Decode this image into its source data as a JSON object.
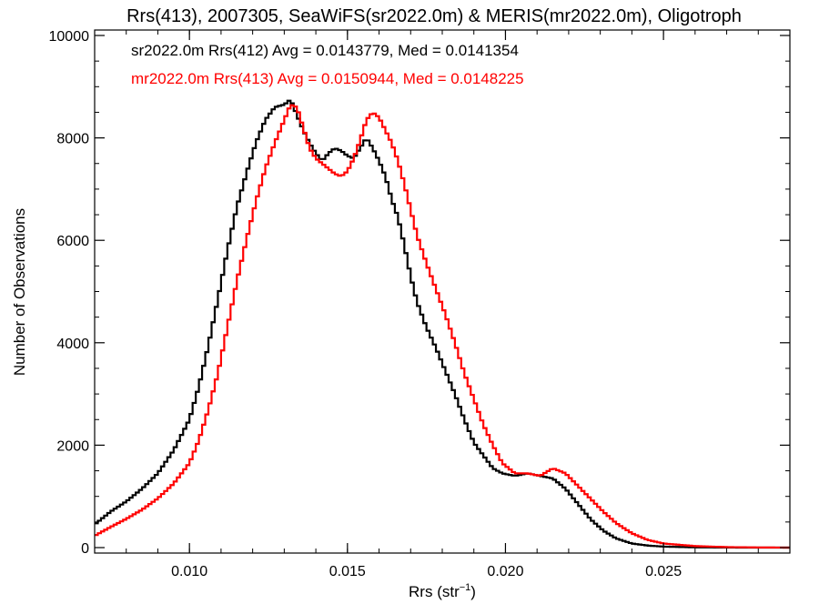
{
  "chart_data": {
    "type": "line",
    "title": "Rrs(413), 2007305, SeaWiFS(sr2022.0m) & MERIS(mr2022.0m), Oligotroph",
    "xlabel_main": "Rrs (str",
    "xlabel_sup": "−1",
    "xlabel_close": ")",
    "ylabel": "Number of Observations",
    "xlim": [
      0.007,
      0.029
    ],
    "ylim": [
      0,
      10000
    ],
    "x_ticks": [
      {
        "value": 0.01,
        "label": "0.010"
      },
      {
        "value": 0.015,
        "label": "0.015"
      },
      {
        "value": 0.02,
        "label": "0.020"
      },
      {
        "value": 0.025,
        "label": "0.025"
      }
    ],
    "y_ticks": [
      {
        "value": 0,
        "label": "0"
      },
      {
        "value": 2000,
        "label": "2000"
      },
      {
        "value": 4000,
        "label": "4000"
      },
      {
        "value": 6000,
        "label": "6000"
      },
      {
        "value": 8000,
        "label": "8000"
      },
      {
        "value": 10000,
        "label": "10000"
      }
    ],
    "grid": false,
    "series": [
      {
        "name": "sr2022.0m Rrs(412) Avg = 0.0143779, Med = 0.0141354",
        "color": "#000000",
        "step": true,
        "points": [
          [
            0.007,
            450
          ],
          [
            0.0075,
            700
          ],
          [
            0.008,
            900
          ],
          [
            0.0085,
            1150
          ],
          [
            0.009,
            1450
          ],
          [
            0.0095,
            1900
          ],
          [
            0.01,
            2500
          ],
          [
            0.0103,
            3150
          ],
          [
            0.0106,
            3950
          ],
          [
            0.0109,
            4850
          ],
          [
            0.0112,
            5800
          ],
          [
            0.0115,
            6650
          ],
          [
            0.0118,
            7300
          ],
          [
            0.0121,
            7900
          ],
          [
            0.0124,
            8350
          ],
          [
            0.0127,
            8600
          ],
          [
            0.013,
            8650
          ],
          [
            0.0132,
            8750
          ],
          [
            0.0134,
            8450
          ],
          [
            0.0136,
            8150
          ],
          [
            0.0138,
            7900
          ],
          [
            0.014,
            7700
          ],
          [
            0.0142,
            7550
          ],
          [
            0.0144,
            7700
          ],
          [
            0.0146,
            7800
          ],
          [
            0.0148,
            7750
          ],
          [
            0.015,
            7650
          ],
          [
            0.0152,
            7600
          ],
          [
            0.0154,
            7800
          ],
          [
            0.0156,
            8000
          ],
          [
            0.0158,
            7800
          ],
          [
            0.016,
            7550
          ],
          [
            0.0162,
            7250
          ],
          [
            0.0164,
            6800
          ],
          [
            0.0166,
            6450
          ],
          [
            0.0168,
            5900
          ],
          [
            0.017,
            5300
          ],
          [
            0.0172,
            4800
          ],
          [
            0.0175,
            4300
          ],
          [
            0.0178,
            3900
          ],
          [
            0.0181,
            3450
          ],
          [
            0.0184,
            3000
          ],
          [
            0.0187,
            2500
          ],
          [
            0.019,
            2050
          ],
          [
            0.0193,
            1800
          ],
          [
            0.0196,
            1550
          ],
          [
            0.0199,
            1450
          ],
          [
            0.0203,
            1400
          ],
          [
            0.0207,
            1450
          ],
          [
            0.0211,
            1400
          ],
          [
            0.0215,
            1350
          ],
          [
            0.0219,
            1150
          ],
          [
            0.0223,
            850
          ],
          [
            0.0227,
            550
          ],
          [
            0.0231,
            330
          ],
          [
            0.0235,
            180
          ],
          [
            0.024,
            80
          ],
          [
            0.0245,
            40
          ],
          [
            0.025,
            20
          ],
          [
            0.026,
            5
          ],
          [
            0.0275,
            0
          ],
          [
            0.029,
            0
          ]
        ]
      },
      {
        "name": "mr2022.0m Rrs(413) Avg = 0.0150944, Med = 0.0148225",
        "color": "#ff0000",
        "step": true,
        "points": [
          [
            0.007,
            230
          ],
          [
            0.0075,
            400
          ],
          [
            0.008,
            560
          ],
          [
            0.0085,
            740
          ],
          [
            0.009,
            960
          ],
          [
            0.0095,
            1250
          ],
          [
            0.01,
            1650
          ],
          [
            0.0103,
            2100
          ],
          [
            0.0106,
            2700
          ],
          [
            0.0109,
            3400
          ],
          [
            0.0112,
            4300
          ],
          [
            0.0115,
            5200
          ],
          [
            0.0118,
            6000
          ],
          [
            0.0121,
            6750
          ],
          [
            0.0124,
            7400
          ],
          [
            0.0127,
            7900
          ],
          [
            0.013,
            8350
          ],
          [
            0.0132,
            8650
          ],
          [
            0.0134,
            8600
          ],
          [
            0.0136,
            8200
          ],
          [
            0.0138,
            7800
          ],
          [
            0.014,
            7600
          ],
          [
            0.0142,
            7500
          ],
          [
            0.0144,
            7400
          ],
          [
            0.0146,
            7300
          ],
          [
            0.0148,
            7250
          ],
          [
            0.015,
            7350
          ],
          [
            0.0152,
            7600
          ],
          [
            0.0154,
            7950
          ],
          [
            0.0156,
            8350
          ],
          [
            0.0158,
            8500
          ],
          [
            0.016,
            8400
          ],
          [
            0.0162,
            8150
          ],
          [
            0.0164,
            7900
          ],
          [
            0.0166,
            7550
          ],
          [
            0.0168,
            7100
          ],
          [
            0.017,
            6600
          ],
          [
            0.0172,
            6100
          ],
          [
            0.0175,
            5550
          ],
          [
            0.0178,
            5050
          ],
          [
            0.0181,
            4550
          ],
          [
            0.0184,
            4000
          ],
          [
            0.0187,
            3400
          ],
          [
            0.019,
            2900
          ],
          [
            0.0193,
            2400
          ],
          [
            0.0196,
            2000
          ],
          [
            0.0199,
            1650
          ],
          [
            0.0203,
            1450
          ],
          [
            0.0207,
            1450
          ],
          [
            0.0211,
            1400
          ],
          [
            0.0215,
            1550
          ],
          [
            0.0219,
            1450
          ],
          [
            0.0223,
            1200
          ],
          [
            0.0227,
            950
          ],
          [
            0.0231,
            700
          ],
          [
            0.0235,
            480
          ],
          [
            0.024,
            280
          ],
          [
            0.0245,
            150
          ],
          [
            0.025,
            80
          ],
          [
            0.026,
            30
          ],
          [
            0.027,
            10
          ],
          [
            0.028,
            3
          ],
          [
            0.029,
            0
          ]
        ]
      }
    ]
  }
}
